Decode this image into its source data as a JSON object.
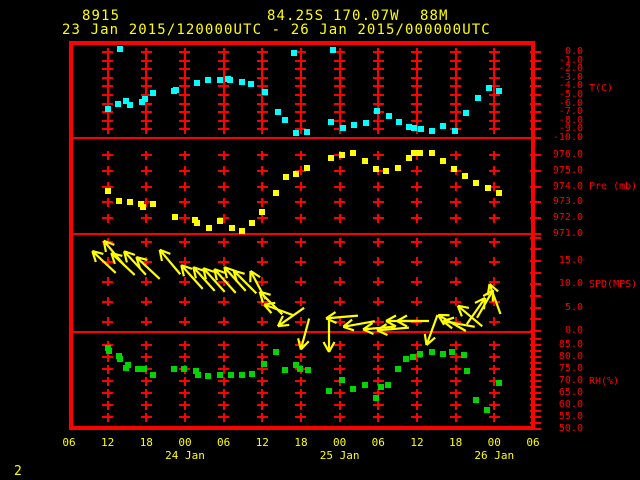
{
  "header": {
    "station_id": "8915",
    "latitude": "84.25S",
    "longitude": "170.07W",
    "elevation": "88M",
    "time_range": "23 Jan 2015/120000UTC - 26 Jan 2015/000000UTC"
  },
  "footer": {
    "page_number": "2"
  },
  "colors": {
    "background": "#000000",
    "grid": "#ff0000",
    "axis_text": "#ff0000",
    "header_text": "#ffff00",
    "temperature": "#00ffff",
    "pressure": "#ffff00",
    "wind": "#ffff00",
    "humidity": "#00d400"
  },
  "chart_data": {
    "type": "scatter",
    "subtype": "meteogram",
    "x_axis": {
      "start": "23 Jan 2015 06UTC",
      "end": "26 Jan 2015 06UTC",
      "tick_interval_hours": 6,
      "hour_labels": [
        "06",
        "12",
        "18",
        "00",
        "06",
        "12",
        "18",
        "00",
        "06",
        "12",
        "18",
        "00",
        "06"
      ],
      "hour_values": [
        0,
        6,
        12,
        18,
        24,
        30,
        36,
        42,
        48,
        54,
        60,
        66,
        72
      ],
      "date_labels": [
        {
          "label": "24 Jan",
          "hour": 18
        },
        {
          "label": "25 Jan",
          "hour": 42
        },
        {
          "label": "26 Jan",
          "hour": 66
        }
      ]
    },
    "panels": [
      {
        "id": "temperature",
        "label": "T(C)",
        "marker": "square",
        "color": "#00ffff",
        "tick_labels": [
          "0.0",
          "-1.0",
          "-2.0",
          "-3.0",
          "-4.0",
          "-5.0",
          "-6.0",
          "-7.0",
          "-8.0",
          "-9.0",
          "-10.0"
        ],
        "tick_values": [
          0,
          -1,
          -2,
          -3,
          -4,
          -5,
          -6,
          -7,
          -8,
          -9,
          -10
        ],
        "points": [
          [
            6.0,
            -6.6
          ],
          [
            7.6,
            -6.0
          ],
          [
            7.9,
            0.3
          ],
          [
            8.8,
            -5.7
          ],
          [
            9.5,
            -6.2
          ],
          [
            11.3,
            -5.8
          ],
          [
            11.8,
            -5.5
          ],
          [
            13.1,
            -4.8
          ],
          [
            16.3,
            -4.5
          ],
          [
            16.6,
            -4.4
          ],
          [
            19.9,
            -3.6
          ],
          [
            21.6,
            -3.3
          ],
          [
            23.4,
            -3.2
          ],
          [
            24.6,
            -3.1
          ],
          [
            25.0,
            -3.3
          ],
          [
            26.8,
            -3.5
          ],
          [
            28.2,
            -3.7
          ],
          [
            30.4,
            -4.6
          ],
          [
            32.4,
            -7.0
          ],
          [
            33.5,
            -7.9
          ],
          [
            34.9,
            -0.1
          ],
          [
            35.3,
            -9.4
          ],
          [
            37.0,
            -9.3
          ],
          [
            40.7,
            -8.1
          ],
          [
            40.9,
            0.2
          ],
          [
            42.5,
            -8.8
          ],
          [
            44.3,
            -8.5
          ],
          [
            46.1,
            -8.2
          ],
          [
            47.8,
            -6.9
          ],
          [
            49.6,
            -7.4
          ],
          [
            51.2,
            -8.1
          ],
          [
            52.7,
            -8.7
          ],
          [
            53.6,
            -8.8
          ],
          [
            54.7,
            -8.9
          ],
          [
            56.4,
            -9.2
          ],
          [
            58.1,
            -8.6
          ],
          [
            59.9,
            -9.2
          ],
          [
            61.6,
            -7.1
          ],
          [
            63.4,
            -5.4
          ],
          [
            65.1,
            -4.2
          ],
          [
            66.8,
            -4.5
          ]
        ]
      },
      {
        "id": "pressure",
        "label": "Pre (mb)",
        "marker": "square",
        "color": "#ffff00",
        "tick_labels": [
          "976.0",
          "975.0",
          "974.0",
          "973.0",
          "972.0",
          "971.0"
        ],
        "tick_values": [
          976,
          975,
          974,
          973,
          972,
          971
        ],
        "points": [
          [
            6.0,
            973.7
          ],
          [
            7.8,
            973.1
          ],
          [
            9.4,
            973.0
          ],
          [
            11.2,
            972.9
          ],
          [
            11.5,
            972.7
          ],
          [
            13.1,
            972.9
          ],
          [
            16.4,
            972.1
          ],
          [
            19.5,
            971.9
          ],
          [
            19.8,
            971.7
          ],
          [
            21.8,
            971.4
          ],
          [
            23.5,
            971.8
          ],
          [
            25.3,
            971.4
          ],
          [
            26.8,
            971.2
          ],
          [
            28.4,
            971.7
          ],
          [
            30.0,
            972.4
          ],
          [
            32.2,
            973.6
          ],
          [
            33.6,
            974.6
          ],
          [
            35.2,
            974.8
          ],
          [
            37.0,
            975.2
          ],
          [
            40.6,
            975.8
          ],
          [
            42.3,
            976.0
          ],
          [
            44.0,
            976.1
          ],
          [
            46.0,
            975.6
          ],
          [
            47.7,
            975.1
          ],
          [
            49.2,
            975.0
          ],
          [
            51.0,
            975.2
          ],
          [
            52.8,
            975.8
          ],
          [
            53.6,
            976.1
          ],
          [
            54.5,
            976.1
          ],
          [
            56.3,
            976.1
          ],
          [
            58.1,
            975.6
          ],
          [
            59.7,
            975.1
          ],
          [
            61.5,
            974.7
          ],
          [
            63.2,
            974.2
          ],
          [
            65.0,
            973.9
          ],
          [
            66.7,
            973.6
          ]
        ]
      },
      {
        "id": "wind_speed",
        "label": "SPD(MPS)",
        "marker": "arrow",
        "color": "#ffff00",
        "tick_labels": [
          "15.0",
          "10.0",
          "5.0",
          "0.0"
        ],
        "tick_values": [
          15,
          10,
          5,
          0
        ],
        "barbs": [
          [
            5.4,
            14.7,
            137
          ],
          [
            7.0,
            16.7,
            130
          ],
          [
            8.4,
            14.3,
            137
          ],
          [
            10.3,
            14.5,
            133
          ],
          [
            12.2,
            13.5,
            137
          ],
          [
            15.6,
            14.7,
            130
          ],
          [
            19.1,
            11.5,
            132
          ],
          [
            20.9,
            11.2,
            132
          ],
          [
            22.5,
            10.9,
            132
          ],
          [
            24.2,
            10.7,
            132
          ],
          [
            25.8,
            11.1,
            132
          ],
          [
            27.3,
            10.4,
            135
          ],
          [
            29.4,
            9.8,
            118
          ],
          [
            31.4,
            5.9,
            135
          ],
          [
            32.6,
            4.5,
            160
          ],
          [
            34.4,
            3.1,
            215
          ],
          [
            36.6,
            -0.6,
            255
          ],
          [
            40.4,
            -1.0,
            270
          ],
          [
            42.4,
            3.1,
            185
          ],
          [
            45.0,
            1.5,
            190
          ],
          [
            48.1,
            0.6,
            185
          ],
          [
            50.3,
            0.4,
            185
          ],
          [
            51.6,
            2.2,
            180
          ],
          [
            53.4,
            2.1,
            180
          ],
          [
            56.4,
            0.2,
            250
          ],
          [
            59.4,
            1.8,
            150
          ],
          [
            60.5,
            1.4,
            170
          ],
          [
            62.3,
            3.3,
            140
          ],
          [
            63.2,
            4.2,
            55
          ],
          [
            64.5,
            5.7,
            60
          ],
          [
            66.1,
            6.8,
            110
          ]
        ]
      },
      {
        "id": "relative_humidity",
        "label": "RH(%)",
        "marker": "square",
        "color": "#00d400",
        "tick_labels": [
          "85.0",
          "80.0",
          "75.0",
          "70.0",
          "65.0",
          "60.0",
          "55.0",
          "50.0"
        ],
        "tick_values": [
          85,
          80,
          75,
          70,
          65,
          60,
          55,
          50
        ],
        "points": [
          [
            6.0,
            83.8
          ],
          [
            6.2,
            82.5
          ],
          [
            7.8,
            80.4
          ],
          [
            7.9,
            79.0
          ],
          [
            8.8,
            75.4
          ],
          [
            9.2,
            76.5
          ],
          [
            10.7,
            74.9
          ],
          [
            11.7,
            74.9
          ],
          [
            13.0,
            72.4
          ],
          [
            16.3,
            74.9
          ],
          [
            17.8,
            75.1
          ],
          [
            19.7,
            74.0
          ],
          [
            20.0,
            72.6
          ],
          [
            21.6,
            72.1
          ],
          [
            23.4,
            72.6
          ],
          [
            25.1,
            72.6
          ],
          [
            26.8,
            72.6
          ],
          [
            28.4,
            73.0
          ],
          [
            30.2,
            77.2
          ],
          [
            32.2,
            82.1
          ],
          [
            33.5,
            74.4
          ],
          [
            35.2,
            76.5
          ],
          [
            35.9,
            74.9
          ],
          [
            37.1,
            74.4
          ],
          [
            40.4,
            65.7
          ],
          [
            42.3,
            70.3
          ],
          [
            44.1,
            66.5
          ],
          [
            46.0,
            68.2
          ],
          [
            47.7,
            62.9
          ],
          [
            48.4,
            67.5
          ],
          [
            49.5,
            68.5
          ],
          [
            51.0,
            74.9
          ],
          [
            52.3,
            79.0
          ],
          [
            53.4,
            80.0
          ],
          [
            54.4,
            81.4
          ],
          [
            56.3,
            82.1
          ],
          [
            58.0,
            81.4
          ],
          [
            59.5,
            82.1
          ],
          [
            61.3,
            80.7
          ],
          [
            61.7,
            74.0
          ],
          [
            63.2,
            61.9
          ],
          [
            64.8,
            57.8
          ],
          [
            66.7,
            69.3
          ]
        ]
      }
    ]
  }
}
